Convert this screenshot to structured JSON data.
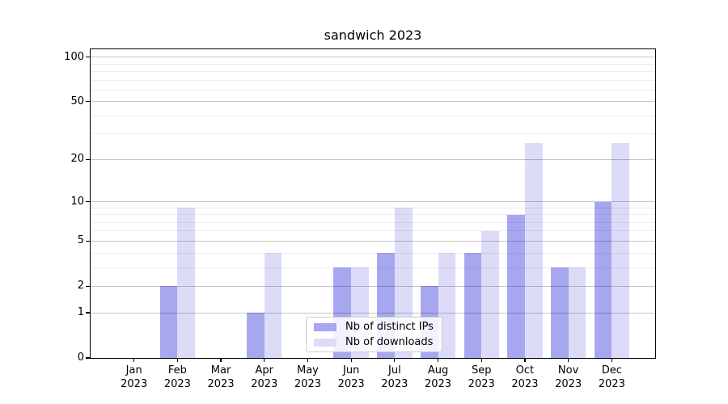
{
  "title": "sandwich 2023",
  "chart_data": {
    "type": "bar",
    "title": "sandwich 2023",
    "categories": [
      "Jan 2023",
      "Feb 2023",
      "Mar 2023",
      "Apr 2023",
      "May 2023",
      "Jun 2023",
      "Jul 2023",
      "Aug 2023",
      "Sep 2023",
      "Oct 2023",
      "Nov 2023",
      "Dec 2023"
    ],
    "series": [
      {
        "name": "Nb of distinct IPs",
        "color": "#a7a7f0",
        "values": [
          0,
          2,
          0,
          1,
          0,
          3,
          4,
          2,
          4,
          8,
          3,
          10
        ]
      },
      {
        "name": "Nb of downloads",
        "color": "#dcdcf9",
        "values": [
          0,
          9,
          0,
          4,
          0,
          3,
          9,
          4,
          6,
          26,
          3,
          26
        ]
      }
    ],
    "xlabel": "",
    "ylabel": "",
    "yscale": "log1p",
    "ylim": [
      0,
      113
    ],
    "yticks": [
      0,
      1,
      2,
      5,
      10,
      20,
      50,
      100
    ],
    "minor_yticks": [
      3,
      4,
      6,
      7,
      8,
      9,
      30,
      40,
      60,
      70,
      80,
      90
    ],
    "grid": true,
    "legend_position": "lower-center-inside",
    "style": {
      "major_grid_color": "rgba(0,0,0,0.22)",
      "minor_grid_color": "rgba(0,0,0,0.07)",
      "spine_color": "#000000",
      "background": "#ffffff"
    }
  }
}
